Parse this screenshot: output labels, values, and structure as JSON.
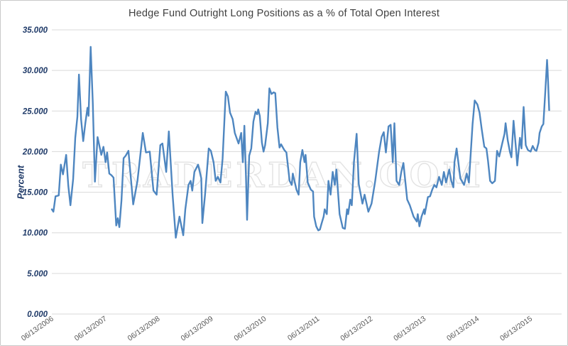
{
  "title": "Hedge Fund Outright Long Positions as a % of Total Open Interest",
  "ylabel": "Percent",
  "watermark": "TRADERDAN.COM",
  "colors": {
    "line": "#4e86c0",
    "grid": "#d9d9d9",
    "title_text": "#404040",
    "ytick_text": "#1f3a68",
    "xtick_text": "#595959",
    "watermark_stroke": "#e3e3e3",
    "frame_border": "#c9c9c9",
    "background": "#ffffff"
  },
  "chart_data": {
    "type": "line",
    "title": "Hedge Fund Outright Long Positions as a % of Total Open Interest",
    "xlabel": "",
    "ylabel": "Percent",
    "ylim": [
      0,
      35
    ],
    "grid": true,
    "legend": "none",
    "ytick_values": [
      35,
      30,
      25,
      20,
      15,
      10,
      5,
      0
    ],
    "ytick_labels": [
      "35.000",
      "30.000",
      "25.000",
      "20.000",
      "15.000",
      "10.000",
      "5.000",
      "0.000"
    ],
    "xtick_labels": [
      "06/13/2006",
      "06/13/2007",
      "06/13/2008",
      "06/13/2009",
      "06/13/2010",
      "06/13/2011",
      "06/13/2012",
      "06/13/2013",
      "06/13/2014",
      "06/13/2015"
    ],
    "xtick_times": [
      2006.45,
      2007.45,
      2008.45,
      2009.45,
      2010.45,
      2011.45,
      2012.45,
      2013.45,
      2014.45,
      2015.45
    ],
    "x_domain": [
      2006.45,
      2015.82
    ],
    "series": [
      {
        "color": "#4e86c0",
        "points": [
          [
            2006.45,
            12.9
          ],
          [
            2006.48,
            12.6
          ],
          [
            2006.52,
            14.5
          ],
          [
            2006.58,
            14.6
          ],
          [
            2006.62,
            18.4
          ],
          [
            2006.66,
            17.2
          ],
          [
            2006.72,
            19.6
          ],
          [
            2006.76,
            15.8
          ],
          [
            2006.8,
            13.4
          ],
          [
            2006.85,
            16.6
          ],
          [
            2006.89,
            21.7
          ],
          [
            2006.93,
            24.3
          ],
          [
            2006.96,
            29.5
          ],
          [
            2007.0,
            24.0
          ],
          [
            2007.04,
            21.3
          ],
          [
            2007.08,
            23.5
          ],
          [
            2007.12,
            25.4
          ],
          [
            2007.14,
            24.4
          ],
          [
            2007.18,
            32.9
          ],
          [
            2007.22,
            26.0
          ],
          [
            2007.26,
            16.3
          ],
          [
            2007.31,
            21.8
          ],
          [
            2007.38,
            19.6
          ],
          [
            2007.42,
            20.6
          ],
          [
            2007.46,
            18.7
          ],
          [
            2007.49,
            19.9
          ],
          [
            2007.53,
            17.3
          ],
          [
            2007.57,
            17.1
          ],
          [
            2007.61,
            16.8
          ],
          [
            2007.66,
            10.9
          ],
          [
            2007.69,
            11.8
          ],
          [
            2007.72,
            10.7
          ],
          [
            2007.76,
            14.0
          ],
          [
            2007.8,
            19.2
          ],
          [
            2007.84,
            19.5
          ],
          [
            2007.89,
            20.1
          ],
          [
            2007.98,
            13.5
          ],
          [
            2008.06,
            16.4
          ],
          [
            2008.16,
            22.3
          ],
          [
            2008.22,
            19.9
          ],
          [
            2008.29,
            20.0
          ],
          [
            2008.36,
            15.2
          ],
          [
            2008.42,
            14.7
          ],
          [
            2008.49,
            20.8
          ],
          [
            2008.53,
            21.0
          ],
          [
            2008.6,
            17.5
          ],
          [
            2008.65,
            22.5
          ],
          [
            2008.72,
            14.7
          ],
          [
            2008.78,
            9.4
          ],
          [
            2008.85,
            12.0
          ],
          [
            2008.92,
            9.7
          ],
          [
            2008.96,
            12.9
          ],
          [
            2009.02,
            15.9
          ],
          [
            2009.06,
            16.4
          ],
          [
            2009.09,
            15.2
          ],
          [
            2009.13,
            17.5
          ],
          [
            2009.2,
            18.4
          ],
          [
            2009.26,
            16.7
          ],
          [
            2009.28,
            11.2
          ],
          [
            2009.33,
            14.7
          ],
          [
            2009.4,
            20.4
          ],
          [
            2009.44,
            20.1
          ],
          [
            2009.49,
            18.7
          ],
          [
            2009.53,
            16.4
          ],
          [
            2009.57,
            16.9
          ],
          [
            2009.62,
            16.2
          ],
          [
            2009.66,
            19.1
          ],
          [
            2009.72,
            27.4
          ],
          [
            2009.76,
            26.8
          ],
          [
            2009.8,
            24.8
          ],
          [
            2009.85,
            24.0
          ],
          [
            2009.89,
            22.3
          ],
          [
            2009.96,
            21.0
          ],
          [
            2010.01,
            22.3
          ],
          [
            2010.04,
            18.7
          ],
          [
            2010.07,
            23.2
          ],
          [
            2010.1,
            16.7
          ],
          [
            2010.12,
            11.6
          ],
          [
            2010.16,
            19.5
          ],
          [
            2010.2,
            20.4
          ],
          [
            2010.24,
            23.7
          ],
          [
            2010.28,
            24.9
          ],
          [
            2010.31,
            24.6
          ],
          [
            2010.33,
            25.2
          ],
          [
            2010.36,
            24.4
          ],
          [
            2010.4,
            21.1
          ],
          [
            2010.43,
            20.0
          ],
          [
            2010.46,
            20.8
          ],
          [
            2010.51,
            23.5
          ],
          [
            2010.54,
            27.8
          ],
          [
            2010.58,
            27.1
          ],
          [
            2010.62,
            27.3
          ],
          [
            2010.65,
            27.2
          ],
          [
            2010.69,
            23.0
          ],
          [
            2010.73,
            20.5
          ],
          [
            2010.76,
            20.9
          ],
          [
            2010.82,
            20.2
          ],
          [
            2010.86,
            19.9
          ],
          [
            2010.92,
            16.4
          ],
          [
            2010.96,
            15.9
          ],
          [
            2010.98,
            17.3
          ],
          [
            2011.05,
            15.3
          ],
          [
            2011.09,
            14.7
          ],
          [
            2011.12,
            18.7
          ],
          [
            2011.16,
            20.2
          ],
          [
            2011.2,
            18.7
          ],
          [
            2011.22,
            19.6
          ],
          [
            2011.26,
            16.2
          ],
          [
            2011.32,
            15.3
          ],
          [
            2011.36,
            15.1
          ],
          [
            2011.38,
            12.0
          ],
          [
            2011.42,
            10.8
          ],
          [
            2011.46,
            10.3
          ],
          [
            2011.49,
            10.4
          ],
          [
            2011.52,
            11.1
          ],
          [
            2011.56,
            12.0
          ],
          [
            2011.58,
            12.9
          ],
          [
            2011.62,
            12.3
          ],
          [
            2011.65,
            16.4
          ],
          [
            2011.69,
            14.7
          ],
          [
            2011.73,
            17.5
          ],
          [
            2011.77,
            15.9
          ],
          [
            2011.8,
            17.8
          ],
          [
            2011.86,
            12.3
          ],
          [
            2011.92,
            10.6
          ],
          [
            2011.96,
            10.5
          ],
          [
            2012.0,
            12.9
          ],
          [
            2012.02,
            12.3
          ],
          [
            2012.06,
            14.1
          ],
          [
            2012.09,
            13.4
          ],
          [
            2012.13,
            18.7
          ],
          [
            2012.18,
            22.2
          ],
          [
            2012.22,
            16.0
          ],
          [
            2012.29,
            13.6
          ],
          [
            2012.33,
            14.7
          ],
          [
            2012.4,
            12.6
          ],
          [
            2012.46,
            13.6
          ],
          [
            2012.53,
            16.4
          ],
          [
            2012.6,
            19.9
          ],
          [
            2012.65,
            21.8
          ],
          [
            2012.69,
            22.4
          ],
          [
            2012.73,
            19.9
          ],
          [
            2012.78,
            23.1
          ],
          [
            2012.82,
            23.3
          ],
          [
            2012.86,
            18.7
          ],
          [
            2012.89,
            23.5
          ],
          [
            2012.93,
            16.4
          ],
          [
            2012.98,
            15.9
          ],
          [
            2013.02,
            17.5
          ],
          [
            2013.06,
            18.6
          ],
          [
            2013.13,
            14.1
          ],
          [
            2013.18,
            13.4
          ],
          [
            2013.25,
            12.0
          ],
          [
            2013.31,
            11.4
          ],
          [
            2013.33,
            12.3
          ],
          [
            2013.36,
            10.8
          ],
          [
            2013.4,
            12.0
          ],
          [
            2013.45,
            12.9
          ],
          [
            2013.46,
            12.3
          ],
          [
            2013.52,
            14.4
          ],
          [
            2013.56,
            14.5
          ],
          [
            2013.6,
            15.3
          ],
          [
            2013.64,
            15.9
          ],
          [
            2013.68,
            15.6
          ],
          [
            2013.73,
            16.9
          ],
          [
            2013.78,
            15.9
          ],
          [
            2013.82,
            17.5
          ],
          [
            2013.86,
            16.2
          ],
          [
            2013.92,
            17.8
          ],
          [
            2013.96,
            16.4
          ],
          [
            2014.0,
            15.6
          ],
          [
            2014.02,
            18.7
          ],
          [
            2014.06,
            20.4
          ],
          [
            2014.13,
            16.7
          ],
          [
            2014.2,
            15.9
          ],
          [
            2014.25,
            17.3
          ],
          [
            2014.29,
            16.2
          ],
          [
            2014.36,
            23.4
          ],
          [
            2014.4,
            26.3
          ],
          [
            2014.42,
            26.1
          ],
          [
            2014.45,
            25.8
          ],
          [
            2014.49,
            24.8
          ],
          [
            2014.53,
            22.8
          ],
          [
            2014.58,
            20.6
          ],
          [
            2014.62,
            20.4
          ],
          [
            2014.65,
            18.9
          ],
          [
            2014.69,
            16.4
          ],
          [
            2014.73,
            16.1
          ],
          [
            2014.78,
            16.4
          ],
          [
            2014.82,
            20.1
          ],
          [
            2014.86,
            19.4
          ],
          [
            2014.92,
            21.1
          ],
          [
            2014.96,
            22.2
          ],
          [
            2014.98,
            23.5
          ],
          [
            2015.02,
            21.4
          ],
          [
            2015.06,
            20.0
          ],
          [
            2015.09,
            19.3
          ],
          [
            2015.13,
            23.8
          ],
          [
            2015.18,
            20.0
          ],
          [
            2015.2,
            18.3
          ],
          [
            2015.25,
            21.7
          ],
          [
            2015.28,
            20.4
          ],
          [
            2015.32,
            25.5
          ],
          [
            2015.36,
            20.8
          ],
          [
            2015.4,
            20.2
          ],
          [
            2015.45,
            20.0
          ],
          [
            2015.49,
            20.7
          ],
          [
            2015.53,
            20.2
          ],
          [
            2015.56,
            20.1
          ],
          [
            2015.6,
            21.1
          ],
          [
            2015.62,
            22.3
          ],
          [
            2015.66,
            23.1
          ],
          [
            2015.69,
            23.4
          ],
          [
            2015.73,
            27.8
          ],
          [
            2015.76,
            31.3
          ],
          [
            2015.77,
            30.0
          ],
          [
            2015.8,
            25.1
          ]
        ]
      }
    ]
  }
}
